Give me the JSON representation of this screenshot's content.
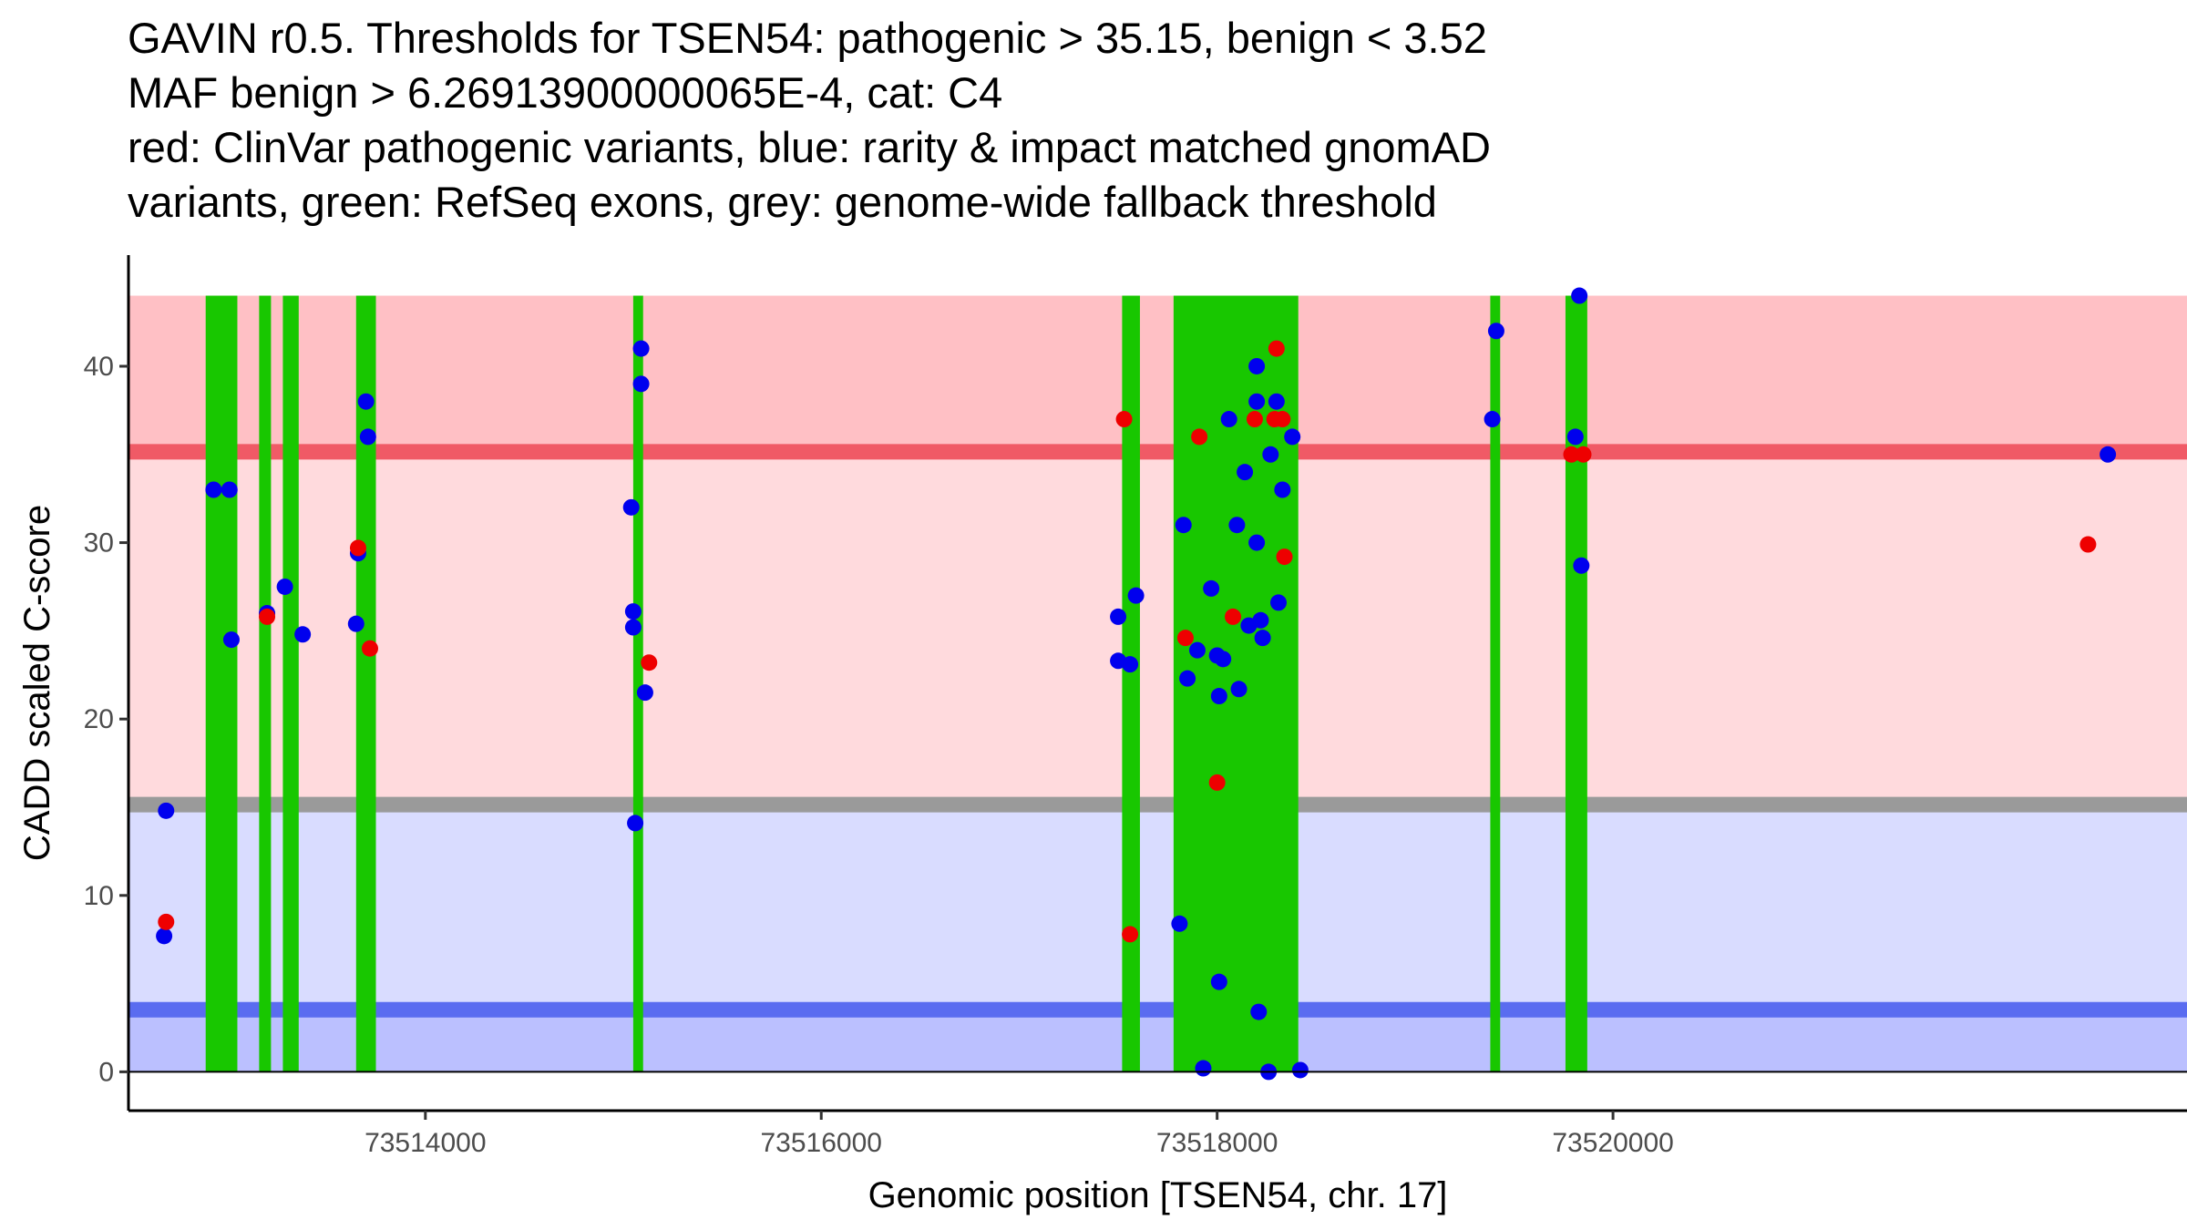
{
  "title_lines": [
    "GAVIN r0.5. Thresholds for TSEN54: pathogenic > 35.15, benign < 3.52",
    "MAF benign > 6.26913900000065E-4, cat: C4",
    "red: ClinVar pathogenic variants, blue: rarity & impact matched gnomAD",
    "variants, green: RefSeq exons, grey: genome-wide fallback threshold"
  ],
  "chart_data": {
    "type": "scatter",
    "xlabel": "Genomic position [TSEN54, chr. 17]",
    "ylabel": "CADD scaled C-score",
    "xlim": [
      73512500,
      73522900
    ],
    "ylim": [
      -2.2,
      46.3
    ],
    "x_ticks": [
      73514000,
      73516000,
      73518000,
      73520000
    ],
    "x_tick_labels": [
      "73514000",
      "73516000",
      "73518000",
      "73520000"
    ],
    "y_ticks": [
      0,
      10,
      20,
      30,
      40
    ],
    "y_tick_labels": [
      "0",
      "10",
      "20",
      "30",
      "40"
    ],
    "bands": [
      {
        "name": "pathogenic-zone",
        "from": 35.15,
        "to": 44,
        "color": "#ffc0c5"
      },
      {
        "name": "fallback-pathogenic-zone",
        "from": 15.15,
        "to": 35.15,
        "color": "#ffdadd"
      },
      {
        "name": "fallback-benign-zone",
        "from": 3.52,
        "to": 15.15,
        "color": "#d9dcff"
      },
      {
        "name": "benign-zone",
        "from": 0,
        "to": 3.52,
        "color": "#bbc0ff"
      }
    ],
    "thresholds": [
      {
        "name": "pathogenic-threshold",
        "value": 35.15,
        "color": "#f05a66"
      },
      {
        "name": "fallback-threshold",
        "value": 15.15,
        "color": "#9a9a9a"
      },
      {
        "name": "benign-threshold",
        "value": 3.52,
        "color": "#5a6cf0"
      }
    ],
    "exons": [
      [
        73512890,
        73513050
      ],
      [
        73513160,
        73513220
      ],
      [
        73513280,
        73513360
      ],
      [
        73513650,
        73513750
      ],
      [
        73515050,
        73515100
      ],
      [
        73517520,
        73517610
      ],
      [
        73517780,
        73518410
      ],
      [
        73519380,
        73519430
      ],
      [
        73519760,
        73519870
      ]
    ],
    "series": [
      {
        "name": "ClinVar pathogenic variants",
        "color": "#ee0000",
        "points": [
          [
            73512690,
            8.5
          ],
          [
            73513200,
            25.8
          ],
          [
            73513660,
            29.7
          ],
          [
            73513720,
            24.0
          ],
          [
            73515130,
            23.2
          ],
          [
            73517530,
            37.0
          ],
          [
            73517560,
            7.8
          ],
          [
            73517840,
            24.6
          ],
          [
            73517910,
            36.0
          ],
          [
            73518000,
            16.4
          ],
          [
            73518080,
            25.8
          ],
          [
            73518190,
            37.0
          ],
          [
            73518290,
            37.0
          ],
          [
            73518300,
            41.0
          ],
          [
            73518330,
            37.0
          ],
          [
            73518340,
            29.2
          ],
          [
            73519790,
            35.0
          ],
          [
            73519850,
            35.0
          ],
          [
            73522400,
            29.9
          ]
        ]
      },
      {
        "name": "gnomAD matched variants",
        "color": "#0000ee",
        "points": [
          [
            73512690,
            14.8
          ],
          [
            73512680,
            7.7
          ],
          [
            73512930,
            33.0
          ],
          [
            73513010,
            33.0
          ],
          [
            73513020,
            24.5
          ],
          [
            73513200,
            26.0
          ],
          [
            73513290,
            27.5
          ],
          [
            73513380,
            24.8
          ],
          [
            73513650,
            25.4
          ],
          [
            73513660,
            29.4
          ],
          [
            73513700,
            38.0
          ],
          [
            73513710,
            36.0
          ],
          [
            73515040,
            32.0
          ],
          [
            73515050,
            26.1
          ],
          [
            73515050,
            25.2
          ],
          [
            73515060,
            14.1
          ],
          [
            73515090,
            41.0
          ],
          [
            73515090,
            39.0
          ],
          [
            73515110,
            21.5
          ],
          [
            73517500,
            25.8
          ],
          [
            73517500,
            23.3
          ],
          [
            73517560,
            23.1
          ],
          [
            73517590,
            27.0
          ],
          [
            73517810,
            8.4
          ],
          [
            73517830,
            31.0
          ],
          [
            73517850,
            22.3
          ],
          [
            73517900,
            23.9
          ],
          [
            73517930,
            0.2
          ],
          [
            73517970,
            27.4
          ],
          [
            73518000,
            23.6
          ],
          [
            73518010,
            5.1
          ],
          [
            73518010,
            21.3
          ],
          [
            73518030,
            23.4
          ],
          [
            73518060,
            37.0
          ],
          [
            73518100,
            31.0
          ],
          [
            73518110,
            21.7
          ],
          [
            73518140,
            34.0
          ],
          [
            73518160,
            25.3
          ],
          [
            73518200,
            40.0
          ],
          [
            73518200,
            38.0
          ],
          [
            73518200,
            30.0
          ],
          [
            73518210,
            3.4
          ],
          [
            73518220,
            25.6
          ],
          [
            73518230,
            24.6
          ],
          [
            73518260,
            0.0
          ],
          [
            73518270,
            35.0
          ],
          [
            73518300,
            38.0
          ],
          [
            73518310,
            26.6
          ],
          [
            73518330,
            33.0
          ],
          [
            73518380,
            36.0
          ],
          [
            73518420,
            0.1
          ],
          [
            73519390,
            37.0
          ],
          [
            73519410,
            42.0
          ],
          [
            73519810,
            36.0
          ],
          [
            73519830,
            44.0
          ],
          [
            73519840,
            28.7
          ],
          [
            73522500,
            35.0
          ]
        ]
      }
    ]
  }
}
